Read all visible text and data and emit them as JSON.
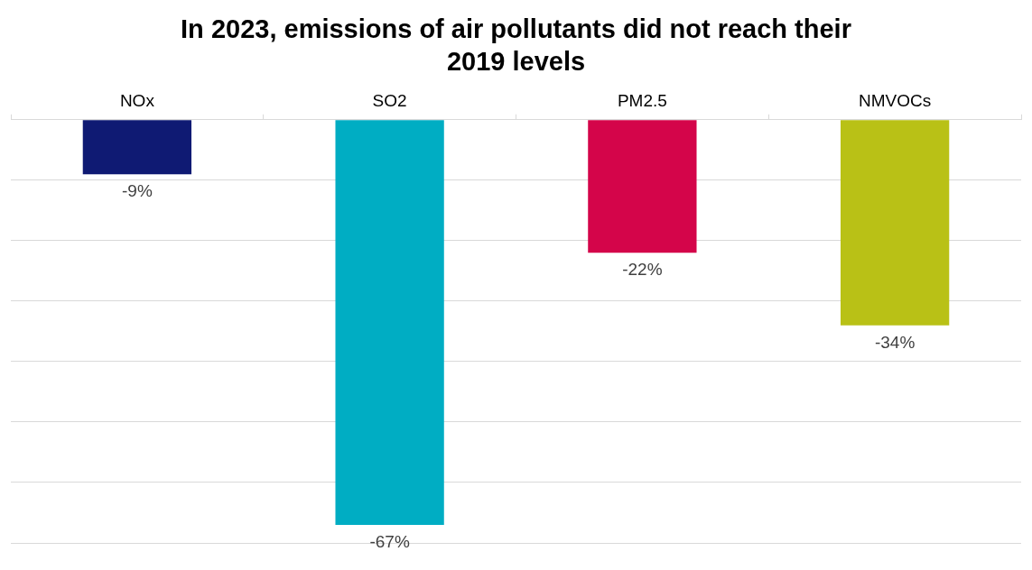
{
  "chart_data": {
    "type": "bar",
    "title": "In 2023, emissions of air pollutants did not reach their 2019 levels",
    "categories": [
      "NOx",
      "SO2",
      "PM2.5",
      "NMVOCs"
    ],
    "values": [
      -9,
      -67,
      -22,
      -34
    ],
    "value_labels": [
      "-9%",
      "-67%",
      "-22%",
      "-34%"
    ],
    "colors": [
      "#0f1a73",
      "#00adc3",
      "#d4054a",
      "#b9c116"
    ],
    "ylim": [
      -70,
      0
    ],
    "yticks": [
      {
        "value": -70,
        "label": null
      },
      {
        "value": -60,
        "label": null
      },
      {
        "value": -50,
        "label": null
      },
      {
        "value": -40,
        "label": null
      },
      {
        "value": -30,
        "label": null
      },
      {
        "value": -20,
        "label": null
      },
      {
        "value": -10,
        "label": null
      },
      {
        "value": 0,
        "label": null
      }
    ],
    "tick_labels": "x",
    "grid": "y",
    "legend": false
  }
}
